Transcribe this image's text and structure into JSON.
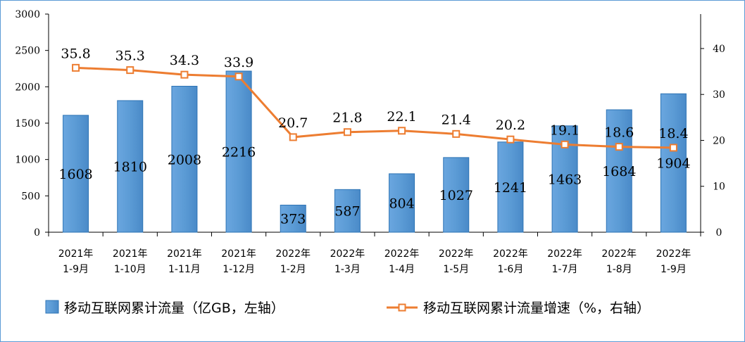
{
  "chart_data": {
    "type": "bar",
    "categories": [
      [
        "2021年",
        "1-9月"
      ],
      [
        "2021年",
        "1-10月"
      ],
      [
        "2021年",
        "1-11月"
      ],
      [
        "2021年",
        "1-12月"
      ],
      [
        "2022年",
        "1-2月"
      ],
      [
        "2022年",
        "1-3月"
      ],
      [
        "2022年",
        "1-4月"
      ],
      [
        "2022年",
        "1-5月"
      ],
      [
        "2022年",
        "1-6月"
      ],
      [
        "2022年",
        "1-7月"
      ],
      [
        "2022年",
        "1-8月"
      ],
      [
        "2022年",
        "1-9月"
      ]
    ],
    "series": [
      {
        "name": "移动互联网累计流量（亿GB，左轴）",
        "type": "bar",
        "axis": "left",
        "color": "#5b9bd5",
        "values": [
          1608,
          1810,
          2008,
          2216,
          373,
          587,
          804,
          1027,
          1241,
          1463,
          1684,
          1904
        ],
        "labels": [
          "1608",
          "1810",
          "2008",
          "2216",
          "373",
          "587",
          "804",
          "1027",
          "1241",
          "1463",
          "1684",
          "1904"
        ]
      },
      {
        "name": "移动互联网累计流量增速（%，右轴）",
        "type": "line",
        "axis": "right",
        "color": "#ed7d31",
        "values": [
          35.8,
          35.3,
          34.3,
          33.9,
          20.7,
          21.8,
          22.1,
          21.4,
          20.2,
          19.1,
          18.6,
          18.4
        ],
        "labels": [
          "35.8",
          "35.3",
          "34.3",
          "33.9",
          "20.7",
          "21.8",
          "22.1",
          "21.4",
          "20.2",
          "19.1",
          "18.6",
          "18.4"
        ]
      }
    ],
    "y_left": {
      "min": 0,
      "max": 3000,
      "ticks": [
        "0",
        "500",
        "1000",
        "1500",
        "2000",
        "2500",
        "3000"
      ]
    },
    "y_right": {
      "min": 0,
      "max": 47.5,
      "ticks": [
        "0",
        "10",
        "20",
        "30",
        "40"
      ]
    },
    "title": "",
    "xlabel": "",
    "legend_position": "bottom"
  }
}
